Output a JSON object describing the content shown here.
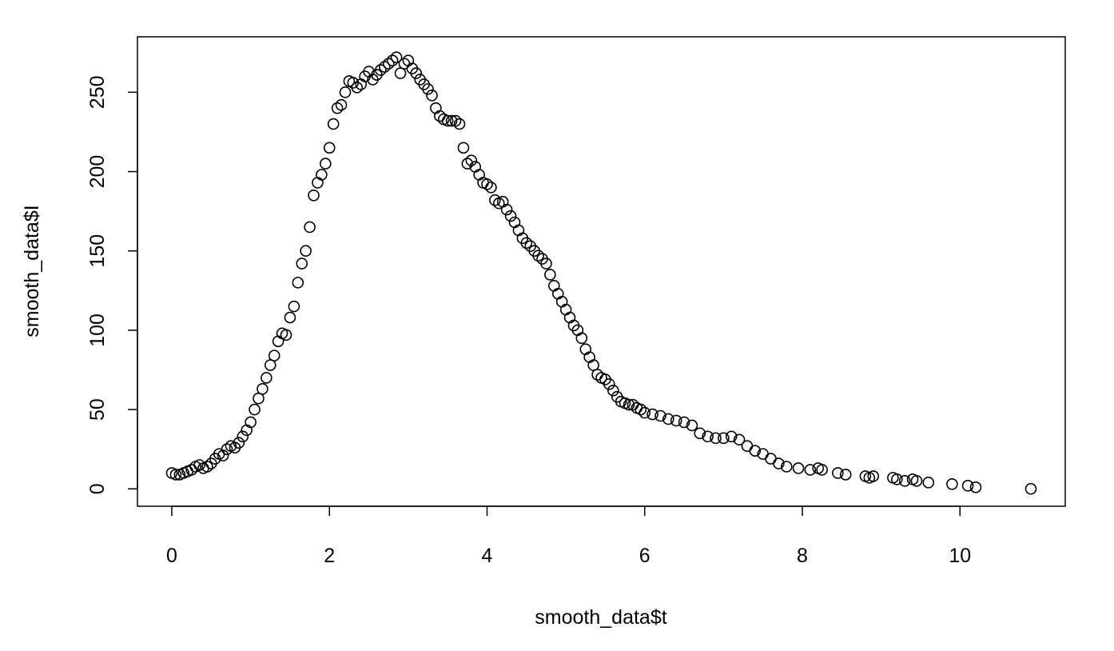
{
  "chart_data": {
    "type": "scatter",
    "x_label": "smooth_data$t",
    "y_label": "smooth_data$I",
    "xlim": [
      -0.436,
      11.336
    ],
    "ylim": [
      -10.96,
      284.96
    ],
    "xticks": [
      0,
      2,
      4,
      6,
      8,
      10
    ],
    "yticks": [
      0,
      50,
      100,
      150,
      200,
      250
    ],
    "color": "#000000",
    "x": [
      0,
      0.05,
      0.1,
      0.15,
      0.2,
      0.25,
      0.3,
      0.35,
      0.4,
      0.45,
      0.5,
      0.55,
      0.6,
      0.65,
      0.7,
      0.75,
      0.8,
      0.85,
      0.9,
      0.95,
      1.0,
      1.05,
      1.1,
      1.15,
      1.2,
      1.25,
      1.3,
      1.35,
      1.4,
      1.45,
      1.5,
      1.55,
      1.6,
      1.65,
      1.7,
      1.75,
      1.8,
      1.85,
      1.9,
      1.95,
      2.0,
      2.05,
      2.1,
      2.15,
      2.2,
      2.25,
      2.3,
      2.35,
      2.4,
      2.45,
      2.5,
      2.55,
      2.6,
      2.65,
      2.7,
      2.75,
      2.8,
      2.85,
      2.9,
      2.95,
      3.0,
      3.05,
      3.1,
      3.15,
      3.2,
      3.25,
      3.3,
      3.35,
      3.4,
      3.45,
      3.5,
      3.55,
      3.6,
      3.65,
      3.7,
      3.75,
      3.8,
      3.85,
      3.9,
      3.95,
      4.0,
      4.05,
      4.1,
      4.15,
      4.2,
      4.25,
      4.3,
      4.35,
      4.4,
      4.45,
      4.5,
      4.55,
      4.6,
      4.65,
      4.7,
      4.75,
      4.8,
      4.85,
      4.9,
      4.95,
      5.0,
      5.05,
      5.1,
      5.15,
      5.2,
      5.25,
      5.3,
      5.35,
      5.4,
      5.45,
      5.5,
      5.55,
      5.6,
      5.65,
      5.7,
      5.75,
      5.8,
      5.85,
      5.9,
      5.95,
      6.0,
      6.1,
      6.2,
      6.3,
      6.4,
      6.5,
      6.6,
      6.7,
      6.8,
      6.9,
      7.0,
      7.1,
      7.2,
      7.3,
      7.4,
      7.5,
      7.6,
      7.7,
      7.8,
      7.95,
      8.1,
      8.2,
      8.25,
      8.45,
      8.55,
      8.8,
      8.85,
      8.9,
      9.15,
      9.2,
      9.3,
      9.4,
      9.45,
      9.6,
      9.9,
      10.1,
      10.2,
      10.9
    ],
    "values": [
      10,
      9,
      9,
      10,
      11,
      12,
      14,
      15,
      13,
      14,
      16,
      19,
      22,
      21,
      25,
      27,
      26,
      29,
      33,
      37,
      42,
      50,
      57,
      63,
      70,
      78,
      84,
      93,
      98,
      97,
      108,
      115,
      130,
      142,
      150,
      165,
      185,
      193,
      198,
      205,
      215,
      230,
      240,
      242,
      250,
      257,
      256,
      253,
      255,
      260,
      263,
      258,
      261,
      264,
      266,
      268,
      270,
      272,
      262,
      268,
      270,
      265,
      262,
      258,
      255,
      252,
      248,
      240,
      235,
      233,
      232,
      232,
      232,
      230,
      215,
      205,
      207,
      203,
      198,
      193,
      192,
      190,
      182,
      180,
      181,
      176,
      172,
      168,
      163,
      158,
      155,
      153,
      150,
      147,
      145,
      142,
      135,
      128,
      123,
      118,
      113,
      108,
      103,
      100,
      95,
      88,
      83,
      78,
      72,
      70,
      69,
      66,
      62,
      58,
      55,
      54,
      53,
      53,
      51,
      50,
      48,
      47,
      46,
      44,
      43,
      42,
      40,
      35,
      33,
      32,
      32,
      33,
      31,
      27,
      24,
      22,
      19,
      16,
      14,
      13,
      12,
      13,
      12,
      10,
      9,
      8,
      7,
      8,
      7,
      6,
      5,
      6,
      5,
      4,
      3,
      2,
      1,
      0
    ]
  }
}
